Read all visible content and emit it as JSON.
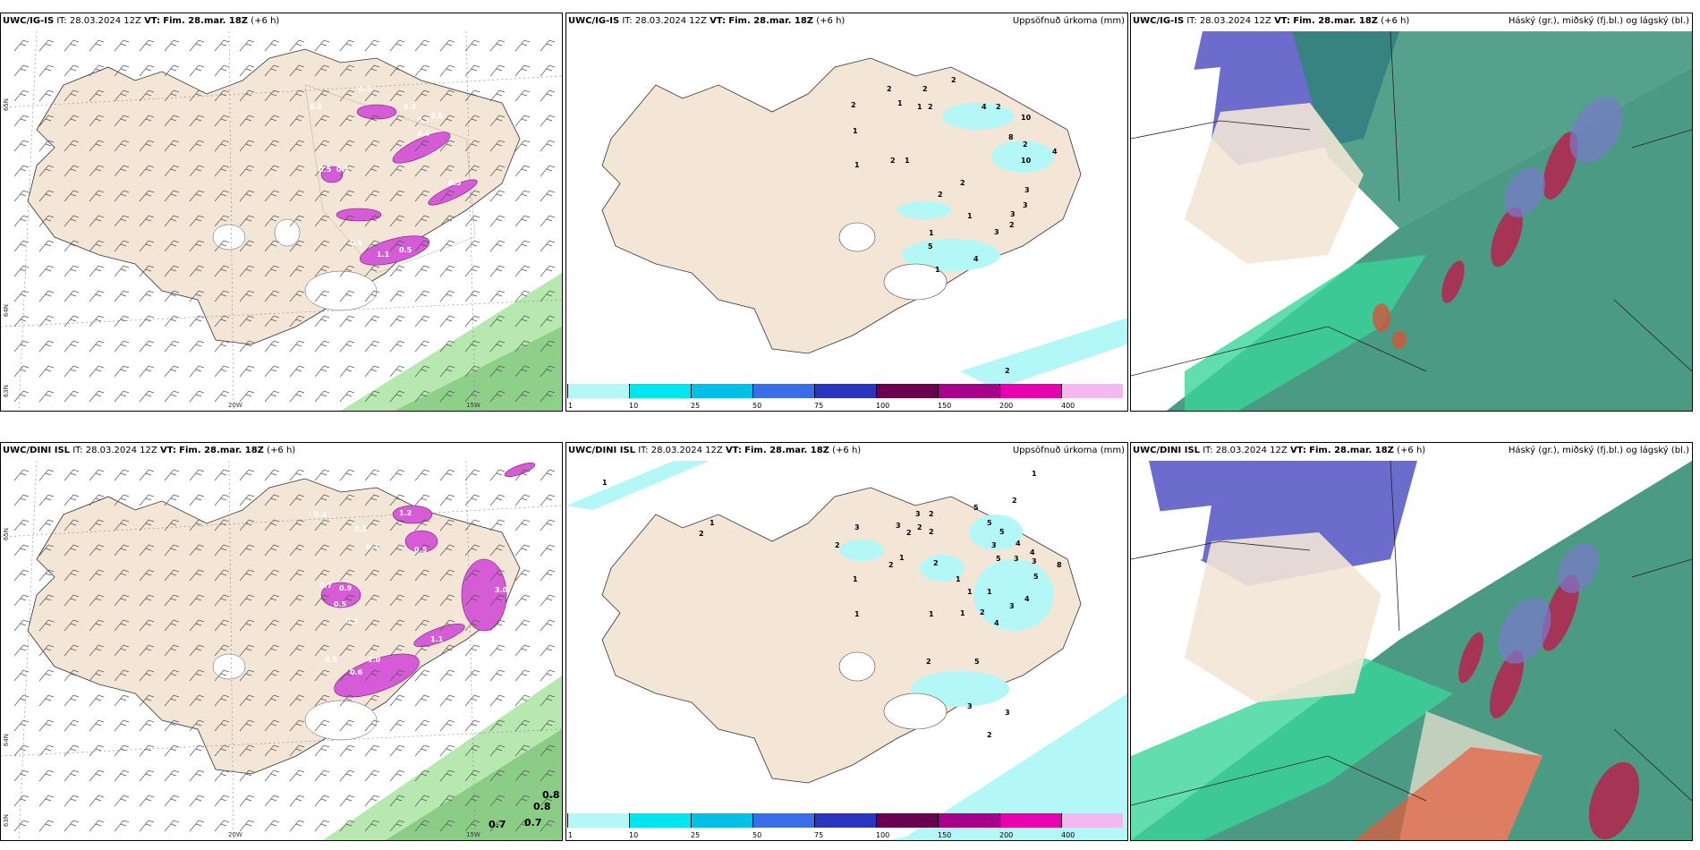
{
  "rows": [
    {
      "model": "UWC/IG-IS",
      "it": "IT: 28.03.2024 12Z",
      "vt_label": "VT:",
      "vt": "Fim. 28.mar. 18Z",
      "lead": "(+6 h)",
      "precip_title": "Uppsöfnuð úrkoma (mm)",
      "cloud_title": "Háský (gr.), miðský (fj.bl.) og lágský (bl.)",
      "map_values": [
        "0.5",
        "0.1",
        "0.5",
        "0.6",
        "0.2",
        "0.6",
        "0.5",
        "0.5",
        "0.4",
        "0.7",
        "0.8",
        "1.1",
        "0.5"
      ],
      "precip_values": [
        "2",
        "2",
        "1",
        "2",
        "1",
        "2",
        "1",
        "1",
        "2",
        "1",
        "2",
        "4",
        "10",
        "8",
        "2",
        "10",
        "4",
        "2",
        "2",
        "3",
        "2",
        "3",
        "1",
        "1",
        "5",
        "4",
        "3",
        "1",
        "2",
        "3",
        "2"
      ]
    },
    {
      "model": "UWC/DINI ISL",
      "it": "IT: 28.03.2024 12Z",
      "vt_label": "VT:",
      "vt": "Fim. 28.mar. 18Z",
      "lead": "(+6 h)",
      "precip_title": "Uppsöfnuð úrkoma (mm)",
      "cloud_title": "Háský (gr.), miðský (fj.bl.) og lágský (bl.)",
      "map_values": [
        "0.4",
        "0.5",
        "0.7",
        "1.2",
        "0.5",
        "0.9",
        "0.5",
        "0.3",
        "0.7",
        "0.6",
        "1.0",
        "0.5",
        "1.1",
        "3.0",
        "0.8",
        "0.8",
        "0.7",
        "0.7"
      ],
      "precip_values": [
        "1",
        "2",
        "1",
        "2",
        "1",
        "3",
        "3",
        "2",
        "2",
        "1",
        "2",
        "3",
        "2",
        "2",
        "2",
        "1",
        "1",
        "1",
        "5",
        "2",
        "5",
        "5",
        "4",
        "3",
        "5",
        "3",
        "3",
        "4",
        "8",
        "5",
        "1",
        "2",
        "1",
        "1",
        "3",
        "4",
        "4",
        "5",
        "2",
        "3",
        "3",
        "2",
        "1"
      ]
    }
  ],
  "lat_labels": [
    "65N",
    "64N",
    "63N"
  ],
  "lat_labels_right": [
    "65N",
    "64N"
  ],
  "lon_labels": [
    "20W",
    "15W"
  ],
  "colorbar_ticks": [
    "1",
    "10",
    "25",
    "50",
    "75",
    "100",
    "150",
    "200",
    "400"
  ],
  "colorbar_colors": [
    "#b4f7f7",
    "#00e6f0",
    "#00c0e8",
    "#3a6ee8",
    "#2a35c0",
    "#6a0050",
    "#a8008a",
    "#e800b0",
    "#f4b8f0"
  ],
  "colors": {
    "land": "#f3e6d6",
    "snow_wash": "#f2f2f2",
    "precip_pink": "#d65bd6",
    "ocean_green": "#b7e8b0",
    "precip_cyan": "#b4f7f7",
    "cloud_high": "#7a7acc",
    "cloud_mid": "#2b8a6e",
    "cloud_low": "#3ad49a"
  }
}
